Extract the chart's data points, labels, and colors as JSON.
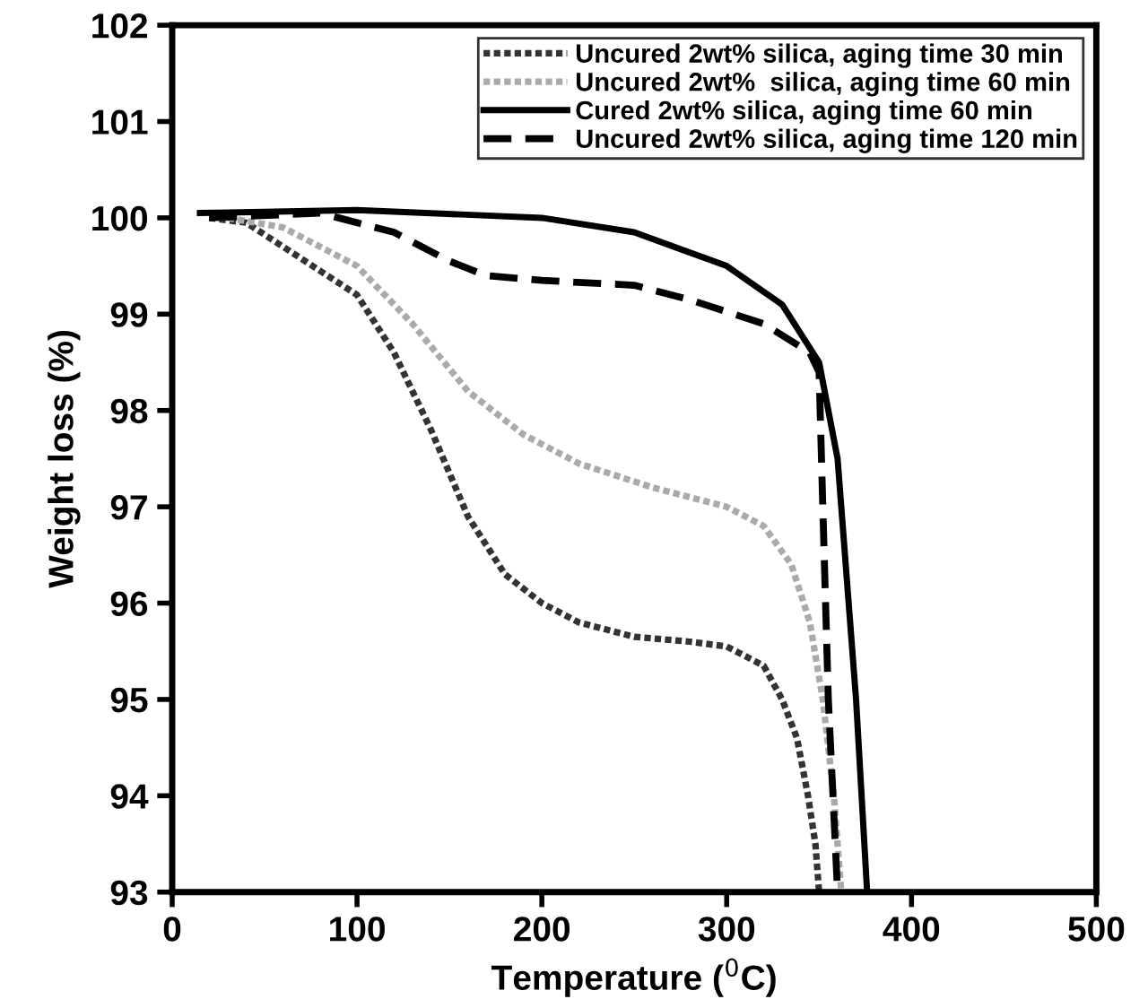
{
  "chart_data": {
    "type": "line",
    "xlabel": "Temperature ($^{0}$C)",
    "ylabel": "Weight loss (%)",
    "xlim": [
      0,
      500
    ],
    "ylim": [
      93,
      102
    ],
    "xticks": [
      0,
      100,
      200,
      300,
      400,
      500
    ],
    "yticks": [
      93,
      94,
      95,
      96,
      97,
      98,
      99,
      100,
      101,
      102
    ],
    "grid": false,
    "legend": "top right",
    "series": [
      {
        "name": "Uncured 2wt% silica, aging time 30 min",
        "color": "#333333",
        "line_style": "dotted",
        "x": [
          20,
          40,
          60,
          80,
          100,
          120,
          140,
          160,
          180,
          200,
          220,
          250,
          280,
          300,
          320,
          330,
          338,
          344,
          348,
          350
        ],
        "values": [
          100,
          99.95,
          99.7,
          99.45,
          99.2,
          98.6,
          97.8,
          96.9,
          96.3,
          96.0,
          95.8,
          95.65,
          95.6,
          95.55,
          95.35,
          95.0,
          94.6,
          94.0,
          93.5,
          93
        ]
      },
      {
        "name": "Uncured 2wt%  silica, aging time 60 min",
        "color": "#aaaaaa",
        "line_style": "dotted",
        "x": [
          30,
          60,
          100,
          130,
          160,
          190,
          220,
          260,
          300,
          320,
          335,
          345,
          352,
          358,
          362
        ],
        "values": [
          100,
          99.9,
          99.5,
          98.9,
          98.2,
          97.75,
          97.45,
          97.2,
          97.0,
          96.8,
          96.4,
          95.8,
          95,
          94,
          93
        ]
      },
      {
        "name": "Cured 2wt% silica, aging time 60 min",
        "color": "#000000",
        "line_style": "solid",
        "x": [
          15,
          100,
          200,
          250,
          300,
          330,
          350,
          360,
          366,
          370,
          373,
          376
        ],
        "values": [
          100.05,
          100.08,
          100.0,
          99.85,
          99.5,
          99.1,
          98.5,
          97.5,
          96.0,
          95.0,
          94.0,
          93
        ]
      },
      {
        "name": "Uncured 2wt% silica, aging time 120 min",
        "color": "#000000",
        "line_style": "dashed",
        "x": [
          20,
          80,
          120,
          150,
          170,
          200,
          250,
          280,
          320,
          345,
          350,
          352,
          355,
          358,
          360
        ],
        "values": [
          100,
          100.05,
          99.85,
          99.55,
          99.4,
          99.35,
          99.3,
          99.15,
          98.9,
          98.6,
          98.4,
          97,
          95,
          93.8,
          93
        ]
      }
    ]
  }
}
